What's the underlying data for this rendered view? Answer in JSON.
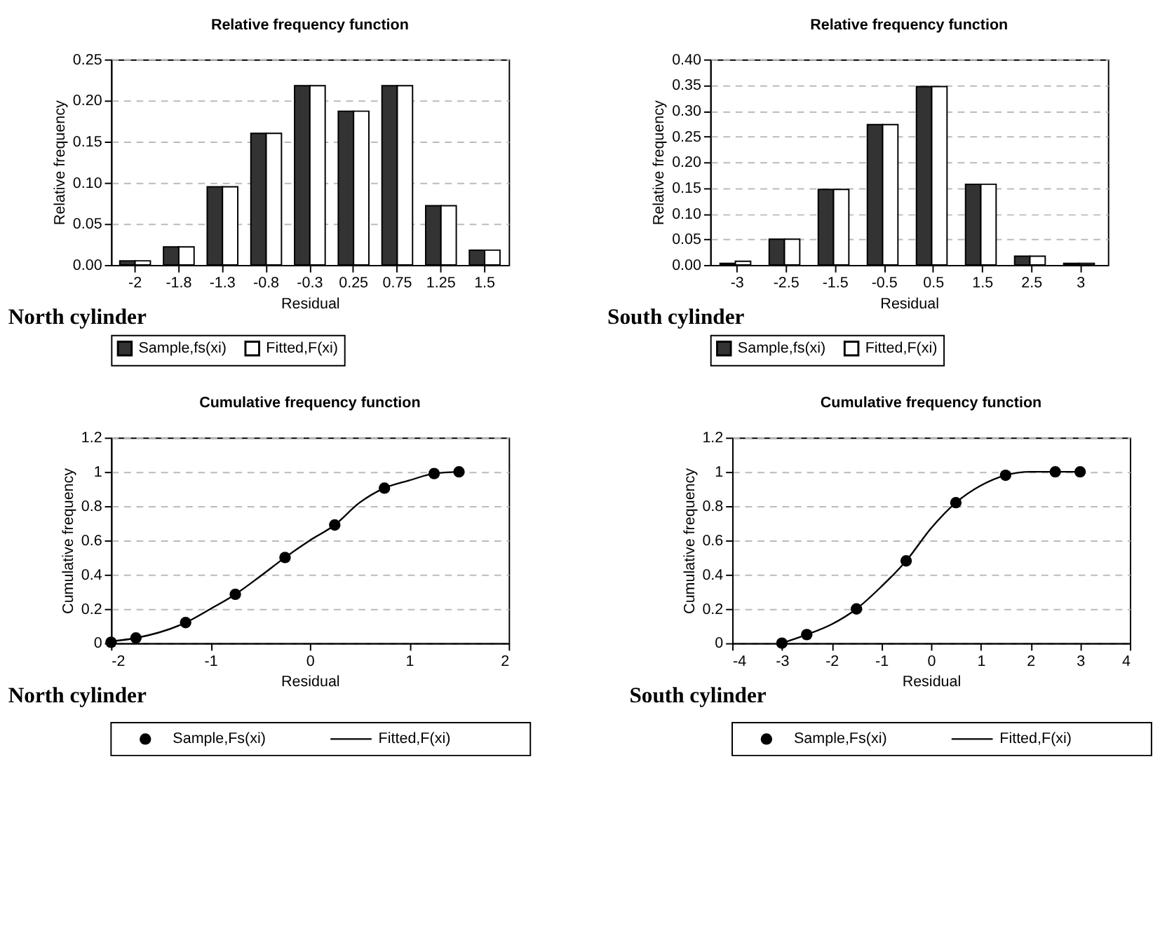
{
  "chart_data": [
    {
      "type": "bar",
      "title": "Relative frequency function",
      "xlabel": "Residual",
      "ylabel": "Relative frequency",
      "categories": [
        "-2",
        "-1.8",
        "-1.3",
        "-0.8",
        "-0.3",
        "0.25",
        "0.75",
        "1.25",
        "1.5"
      ],
      "series": [
        {
          "name": "Sample,fs(xi)",
          "color": "#333333",
          "values": [
            0.005,
            0.022,
            0.095,
            0.16,
            0.218,
            0.187,
            0.218,
            0.072,
            0.018
          ]
        },
        {
          "name": "Fitted,F(xi)",
          "color": "#ffffff",
          "values": [
            0.005,
            0.022,
            0.095,
            0.16,
            0.218,
            0.187,
            0.218,
            0.072,
            0.018
          ]
        }
      ],
      "ylim": [
        0,
        0.25
      ],
      "yticks": [
        {
          "value": 0,
          "label": "0.00"
        },
        {
          "value": 0.05,
          "label": "0.05"
        },
        {
          "value": 0.1,
          "label": "0.10"
        },
        {
          "value": 0.15,
          "label": "0.15"
        },
        {
          "value": 0.2,
          "label": "0.20"
        },
        {
          "value": 0.25,
          "label": "0.25"
        }
      ],
      "grid": "y",
      "legend": "bottom",
      "annotations": [
        "North cylinder"
      ]
    },
    {
      "type": "bar",
      "title": "Relative frequency function",
      "xlabel": "Residual",
      "ylabel": "Relative frequency",
      "categories": [
        "-3",
        "-2.5",
        "-1.5",
        "-0.5",
        "0.5",
        "1.5",
        "2.5",
        "3"
      ],
      "series": [
        {
          "name": "Sample,fs(xi)",
          "color": "#333333",
          "values": [
            0.003,
            0.05,
            0.147,
            0.273,
            0.347,
            0.157,
            0.017,
            0.003
          ]
        },
        {
          "name": "Fitted,F(xi)",
          "color": "#ffffff",
          "values": [
            0.007,
            0.05,
            0.147,
            0.273,
            0.347,
            0.157,
            0.017,
            0.003
          ]
        }
      ],
      "ylim": [
        0,
        0.4
      ],
      "yticks": [
        {
          "value": 0,
          "label": "0.00"
        },
        {
          "value": 0.05,
          "label": "0.05"
        },
        {
          "value": 0.1,
          "label": "0.10"
        },
        {
          "value": 0.15,
          "label": "0.15"
        },
        {
          "value": 0.2,
          "label": "0.20"
        },
        {
          "value": 0.25,
          "label": "0.25"
        },
        {
          "value": 0.3,
          "label": "0.30"
        },
        {
          "value": 0.35,
          "label": "0.35"
        },
        {
          "value": 0.4,
          "label": "0.40"
        }
      ],
      "grid": "y",
      "legend": "bottom",
      "annotations": [
        "South cylinder"
      ]
    },
    {
      "type": "scatter",
      "title": "Cumulative frequency function",
      "xlabel": "Residual",
      "ylabel": "Cumulative frequency",
      "series": [
        {
          "name": "Sample,Fs(xi)",
          "type": "scatter",
          "marker": "circle",
          "color": "#000000",
          "x": [
            -2,
            -1.75,
            -1.25,
            -0.75,
            -0.25,
            0.25,
            0.75,
            1.25,
            1.5
          ],
          "values": [
            0.005,
            0.03,
            0.12,
            0.285,
            0.5,
            0.69,
            0.905,
            0.99,
            1.0
          ]
        },
        {
          "name": "Fitted,F(xi)",
          "type": "line",
          "line_style": "solid",
          "color": "#000000",
          "x": [
            -2,
            -1.75,
            -1.25,
            -1,
            -0.75,
            -0.5,
            -0.25,
            0,
            0.25,
            0.5,
            0.75,
            1,
            1.25,
            1.5
          ],
          "values": [
            0.01,
            0.03,
            0.12,
            0.2,
            0.285,
            0.39,
            0.5,
            0.6,
            0.69,
            0.82,
            0.905,
            0.95,
            0.99,
            1.0
          ]
        }
      ],
      "xlim": [
        -2,
        2
      ],
      "xticks": [
        -2,
        -1,
        0,
        1,
        2
      ],
      "ylim": [
        0,
        1.2
      ],
      "yticks": [
        0,
        0.2,
        0.4,
        0.6,
        0.8,
        1,
        1.2
      ],
      "grid": "y",
      "legend": "bottom",
      "annotations": [
        "North cylinder"
      ]
    },
    {
      "type": "scatter",
      "title": "Cumulative frequency function",
      "xlabel": "Residual",
      "ylabel": "Cumulative frequency",
      "series": [
        {
          "name": "Sample,Fs(xi)",
          "type": "scatter",
          "marker": "circle",
          "color": "#000000",
          "x": [
            -3,
            -2.5,
            -1.5,
            -0.5,
            0.5,
            1.5,
            2.5,
            3
          ],
          "values": [
            0.0,
            0.05,
            0.2,
            0.48,
            0.82,
            0.98,
            1.0,
            1.0
          ]
        },
        {
          "name": "Fitted,F(xi)",
          "type": "line",
          "line_style": "solid",
          "color": "#000000",
          "x": [
            -3,
            -2.5,
            -2,
            -1.5,
            -1,
            -0.5,
            0,
            0.5,
            1,
            1.5,
            2,
            2.5,
            3
          ],
          "values": [
            0.0,
            0.05,
            0.11,
            0.2,
            0.33,
            0.48,
            0.67,
            0.82,
            0.92,
            0.98,
            1.0,
            1.0,
            1.0
          ]
        }
      ],
      "xlim": [
        -4,
        4
      ],
      "xticks": [
        -4,
        -3,
        -2,
        -1,
        0,
        1,
        2,
        3,
        4
      ],
      "ylim": [
        0,
        1.2
      ],
      "yticks": [
        0,
        0.2,
        0.4,
        0.6,
        0.8,
        1,
        1.2
      ],
      "grid": "y",
      "legend": "bottom",
      "annotations": [
        "South cylinder"
      ]
    }
  ]
}
